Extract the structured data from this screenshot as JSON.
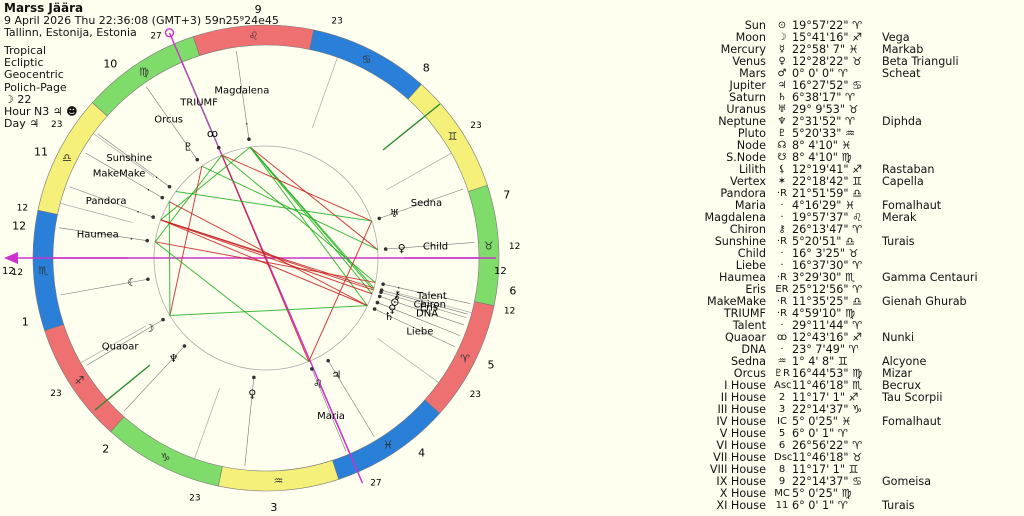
{
  "header": {
    "name": "Marss Jäära",
    "datetime": "9 April 2026 Thu 22:36:08 (GMT+3) 59n25⁹24e45",
    "place": "Tallinn, Estonija, Estonia"
  },
  "settings": [
    "Tropical",
    "Ecliptic",
    "Geocentric",
    "Polich-Page",
    "☽ 22",
    "Hour N3 ♃ ☻",
    "Day ♃"
  ],
  "colors": {
    "fire": "#ef7070",
    "earth": "#7fdc6a",
    "air": "#f5f07a",
    "water": "#2a7fd8",
    "harmonious": "#1fae1f",
    "tense": "#c81e1e",
    "axis": "#cc33cc"
  },
  "chart_data": {
    "type": "table",
    "sign_glyphs": [
      "♈",
      "♉",
      "♊",
      "♋",
      "♌",
      "♍",
      "♎",
      "♏",
      "♐",
      "♑",
      "♒",
      "♓"
    ],
    "house_numbers": [
      "1",
      "2",
      "3",
      "4",
      "5",
      "6",
      "7",
      "8",
      "9",
      "10",
      "11",
      "12"
    ],
    "house_cusp_degrees": [
      "12",
      "23",
      "23",
      "27",
      "23",
      "12",
      "12",
      "23",
      "23",
      "27",
      "23",
      "12"
    ],
    "angle_labels": [
      "12",
      "12"
    ],
    "wheel_points": [
      {
        "name": "Magdalena",
        "glyph": "·"
      },
      {
        "name": "TRIUMF",
        "glyph": "ꝏ"
      },
      {
        "name": "Orcus",
        "glyph": "♇"
      },
      {
        "name": "Sunshine",
        "glyph": "·"
      },
      {
        "name": "MakeMake",
        "glyph": "·"
      },
      {
        "name": "Pandora",
        "glyph": "·"
      },
      {
        "name": "Haumea",
        "glyph": "·"
      },
      {
        "name": "Sedna",
        "glyph": "♅"
      },
      {
        "name": "Child",
        "glyph": "♀"
      },
      {
        "name": "Talent",
        "glyph": "·"
      },
      {
        "name": "Chiron",
        "glyph": "⚷"
      },
      {
        "name": "Eris",
        "glyph": "·"
      },
      {
        "name": "DNA",
        "glyph": "⊙"
      },
      {
        "name": "Liebe",
        "glyph": "♄"
      },
      {
        "name": "Quaoar",
        "glyph": "☽"
      },
      {
        "name": "Maria",
        "glyph": "♌"
      },
      {
        "name": "",
        "glyph": "☾"
      },
      {
        "name": "",
        "glyph": "♆"
      },
      {
        "name": "",
        "glyph": "♀"
      },
      {
        "name": "",
        "glyph": "♃"
      },
      {
        "name": "",
        "glyph": "♀"
      }
    ],
    "rows": [
      {
        "name": "Sun",
        "glyph": "⊙",
        "pos": "19°57'22\" ♈",
        "star": ""
      },
      {
        "name": "Moon",
        "glyph": "☽",
        "pos": "15°41'16\" ♐",
        "star": "Vega"
      },
      {
        "name": "Mercury",
        "glyph": "☿",
        "pos": "22°58' 7\" ♓",
        "star": "Markab"
      },
      {
        "name": "Venus",
        "glyph": "♀",
        "pos": "12°28'22\" ♉",
        "star": "Beta Trianguli"
      },
      {
        "name": "Mars",
        "glyph": "♂",
        "pos": "0° 0' 0\" ♈",
        "star": "Scheat"
      },
      {
        "name": "Jupiter",
        "glyph": "♃",
        "pos": "16°27'52\" ♋",
        "star": ""
      },
      {
        "name": "Saturn",
        "glyph": "♄",
        "pos": "6°38'17\" ♈",
        "star": ""
      },
      {
        "name": "Uranus",
        "glyph": "♅",
        "pos": "29° 9'53\" ♉",
        "star": ""
      },
      {
        "name": "Neptune",
        "glyph": "♆",
        "pos": "2°31'52\" ♈",
        "star": "Diphda"
      },
      {
        "name": "Pluto",
        "glyph": "♇",
        "pos": "5°20'33\" ♒",
        "star": ""
      },
      {
        "name": "Node",
        "glyph": "☊",
        "pos": "8° 4'10\" ♓",
        "star": ""
      },
      {
        "name": "S.Node",
        "glyph": "☋",
        "pos": "8° 4'10\" ♍",
        "star": ""
      },
      {
        "name": "Lilith",
        "glyph": "⚸",
        "pos": "12°19'41\" ♐",
        "star": "Rastaban"
      },
      {
        "name": "Vertex",
        "glyph": "✶",
        "pos": "22°18'42\" ♊",
        "star": "Capella"
      },
      {
        "name": "Pandora",
        "glyph": "·R",
        "pos": "21°51'59\" ♎",
        "star": ""
      },
      {
        "name": "Maria",
        "glyph": "·",
        "pos": "4°16'29\" ♓",
        "star": "Fomalhaut"
      },
      {
        "name": "Magdalena",
        "glyph": "·",
        "pos": "19°57'37\" ♌",
        "star": "Merak"
      },
      {
        "name": "Chiron",
        "glyph": "⚷",
        "pos": "26°13'47\" ♈",
        "star": ""
      },
      {
        "name": "Sunshine",
        "glyph": "·R",
        "pos": "5°20'51\" ♎",
        "star": "Turais"
      },
      {
        "name": "Child",
        "glyph": "·",
        "pos": "16° 3'25\" ♉",
        "star": ""
      },
      {
        "name": "Liebe",
        "glyph": "·",
        "pos": "16°37'30\" ♈",
        "star": ""
      },
      {
        "name": "Haumea",
        "glyph": "·R",
        "pos": "3°29'30\" ♏",
        "star": "Gamma Centauri"
      },
      {
        "name": "Eris",
        "glyph": "ER",
        "pos": "25°12'56\" ♈",
        "star": ""
      },
      {
        "name": "MakeMake",
        "glyph": "·R",
        "pos": "11°35'25\" ♎",
        "star": "Gienah Ghurab"
      },
      {
        "name": "TRIUMF",
        "glyph": "·R",
        "pos": "4°59'10\" ♍",
        "star": ""
      },
      {
        "name": "Talent",
        "glyph": "·",
        "pos": "29°11'44\" ♈",
        "star": ""
      },
      {
        "name": "Quaoar",
        "glyph": "ꝏ",
        "pos": "12°43'16\" ♐",
        "star": "Nunki"
      },
      {
        "name": "DNA",
        "glyph": "·",
        "pos": "23° 7'49\" ♈",
        "star": ""
      },
      {
        "name": "Sedna",
        "glyph": "♒",
        "pos": "1° 4' 8\" ♊",
        "star": "Alcyone"
      },
      {
        "name": "Orcus",
        "glyph": "♇R",
        "pos": "16°44'53\" ♍",
        "star": "Mizar"
      },
      {
        "name": "I House",
        "glyph": "Asc",
        "pos": "11°46'18\" ♏",
        "star": "Becrux"
      },
      {
        "name": "II House",
        "glyph": "2",
        "pos": "11°17' 1\" ♐",
        "star": "Tau Scorpii"
      },
      {
        "name": "III House",
        "glyph": "3",
        "pos": "22°14'37\" ♑",
        "star": ""
      },
      {
        "name": "IV House",
        "glyph": "IC",
        "pos": "5° 0'25\" ♓",
        "star": "Fomalhaut"
      },
      {
        "name": "V House",
        "glyph": "5",
        "pos": "6° 0' 1\" ♈",
        "star": ""
      },
      {
        "name": "VI House",
        "glyph": "6",
        "pos": "26°56'22\" ♈",
        "star": ""
      },
      {
        "name": "VII House",
        "glyph": "Dsc",
        "pos": "11°46'18\" ♉",
        "star": ""
      },
      {
        "name": "VIII House",
        "glyph": "8",
        "pos": "11°17' 1\" ♊",
        "star": ""
      },
      {
        "name": "IX House",
        "glyph": "9",
        "pos": "22°14'37\" ♋",
        "star": "Gomeisa"
      },
      {
        "name": "X House",
        "glyph": "MC",
        "pos": "5° 0'25\" ♍",
        "star": ""
      },
      {
        "name": "XI House",
        "glyph": "11",
        "pos": "6° 0' 1\" ♈",
        "star": "Turais"
      }
    ]
  }
}
